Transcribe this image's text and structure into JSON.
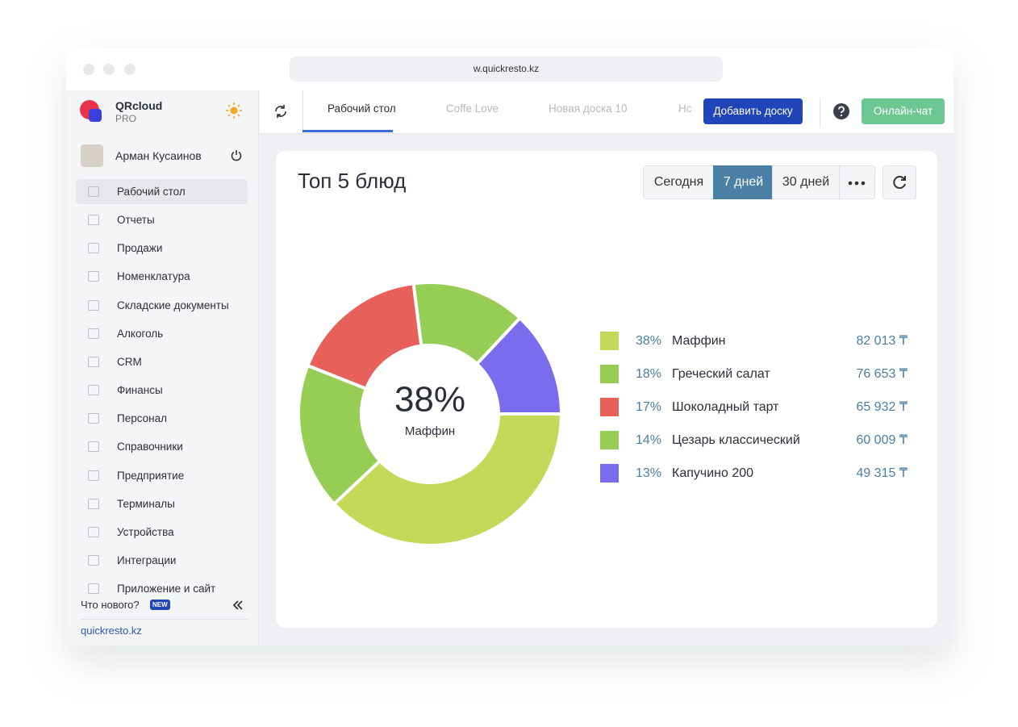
{
  "browser": {
    "url": "w.quickresto.kz"
  },
  "sidebar": {
    "brand": "QRcloud",
    "plan": "PRO",
    "user": "Арман Кусаинов",
    "menu": [
      "Рабочий стол",
      "Отчеты",
      "Продажи",
      "Номенклатура",
      "Складские документы",
      "Алкоголь",
      "CRM",
      "Финансы",
      "Персонал",
      "Справочники",
      "Предприятие",
      "Терминалы",
      "Устройства",
      "Интеграции",
      "Приложение и сайт"
    ],
    "whats_new": "Что нового?",
    "badge": "NEW",
    "footer": "quickresto.kz"
  },
  "topbar": {
    "tabs": [
      "Рабочий стол",
      "Coffe Love",
      "Новая доска 10",
      "Нс"
    ],
    "add_board": "Добавить доску",
    "chat": "Онлайн-чат"
  },
  "widget": {
    "title": "Топ 5 блюд",
    "periods": [
      "Сегодня",
      "7 дней",
      "30 дней"
    ]
  },
  "chart_data": {
    "type": "donut",
    "categories": [
      "Маффин",
      "Греческий салат",
      "Шоколадный тарт",
      "Цезарь классический",
      "Капучино 200"
    ],
    "values": [
      38,
      18,
      17,
      14,
      13
    ],
    "value_labels": [
      "38%",
      "18%",
      "17%",
      "14%",
      "13%"
    ],
    "amounts": [
      {
        "value": 82013,
        "label": "82 013 ₸"
      },
      {
        "value": 76653,
        "label": "76 653 ₸"
      },
      {
        "value": 65932,
        "label": "65 932 ₸"
      },
      {
        "value": 60009,
        "label": "60 009 ₸"
      },
      {
        "value": 49315,
        "label": "49 315 ₸"
      }
    ],
    "colors": [
      "#c5d85a",
      "#96cd55",
      "#e8605a",
      "#96cd55",
      "#7a6cec"
    ]
  }
}
